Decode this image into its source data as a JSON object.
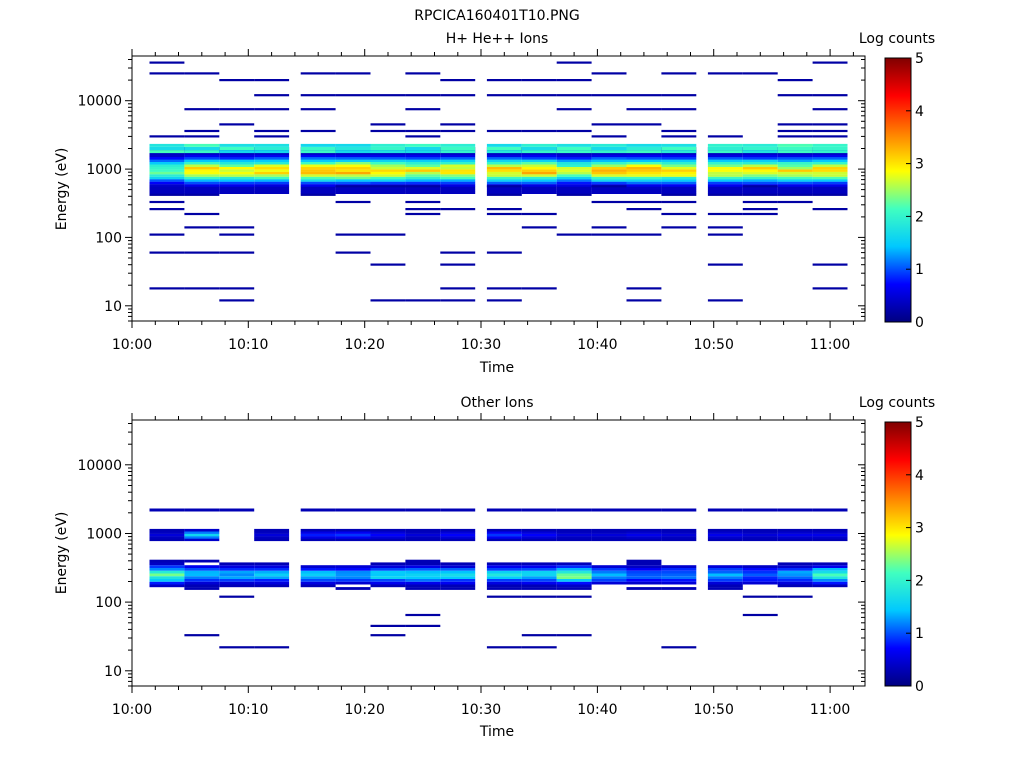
{
  "figure_title": "RPCICA160401T10.PNG",
  "chart_data": [
    {
      "type": "heatmap",
      "title": "H+ He++ Ions",
      "xlabel": "Time",
      "ylabel": "Energy (eV)",
      "x_range": [
        "10:00",
        "11:03"
      ],
      "x_ticks": [
        "10:00",
        "10:10",
        "10:20",
        "10:30",
        "10:40",
        "10:50",
        "11:00"
      ],
      "y_scale": "log",
      "y_range": [
        6,
        45000
      ],
      "y_ticks": [
        "10",
        "100",
        "1000",
        "10000"
      ],
      "grid": false,
      "colorbar": {
        "label": "Log counts",
        "range": [
          0,
          5
        ],
        "ticks": [
          "0",
          "1",
          "2",
          "3",
          "4",
          "5"
        ],
        "colormap": [
          "#000080",
          "#0000ff",
          "#00c8ff",
          "#40ffc0",
          "#ffff00",
          "#ff8000",
          "#ff0000",
          "#800000"
        ]
      },
      "time_bins": [
        "10:03",
        "10:06",
        "10:09",
        "10:12",
        "10:16",
        "10:19",
        "10:22",
        "10:25",
        "10:28",
        "10:32",
        "10:35",
        "10:38",
        "10:41",
        "10:44",
        "10:47",
        "10:51",
        "10:54",
        "10:57",
        "11:00"
      ],
      "core_energy_eV": 950,
      "core_peak_log_counts": [
        2.2,
        3.0,
        2.9,
        3.0,
        3.2,
        3.3,
        3.1,
        2.9,
        3.0,
        3.1,
        3.2,
        2.6,
        3.1,
        3.2,
        3.1,
        3.0,
        3.0,
        2.9,
        3.0
      ],
      "band_2000eV_log_counts": 1.9,
      "sparse_levels_eV": [
        12,
        18,
        40,
        60,
        110,
        140,
        220,
        260,
        330,
        420,
        560,
        3000,
        3600,
        4500,
        7500,
        12000,
        20000,
        25000,
        36000
      ],
      "sparse_log_counts": 0.2
    },
    {
      "type": "heatmap",
      "title": "Other Ions",
      "xlabel": "Time",
      "ylabel": "Energy (eV)",
      "x_range": [
        "10:00",
        "11:03"
      ],
      "x_ticks": [
        "10:00",
        "10:10",
        "10:20",
        "10:30",
        "10:40",
        "10:50",
        "11:00"
      ],
      "y_scale": "log",
      "y_range": [
        6,
        45000
      ],
      "y_ticks": [
        "10",
        "100",
        "1000",
        "10000"
      ],
      "grid": false,
      "colorbar": {
        "label": "Log counts",
        "range": [
          0,
          5
        ],
        "ticks": [
          "0",
          "1",
          "2",
          "3",
          "4",
          "5"
        ],
        "colormap": [
          "#000080",
          "#0000ff",
          "#00c8ff",
          "#40ffc0",
          "#ffff00",
          "#ff8000",
          "#ff0000",
          "#800000"
        ]
      },
      "time_bins": [
        "10:03",
        "10:06",
        "10:09",
        "10:12",
        "10:16",
        "10:19",
        "10:22",
        "10:25",
        "10:28",
        "10:32",
        "10:35",
        "10:38",
        "10:41",
        "10:44",
        "10:47",
        "10:51",
        "10:54",
        "10:57",
        "11:00"
      ],
      "band_250eV_log_counts": [
        2.2,
        1.5,
        1.3,
        1.5,
        1.4,
        1.3,
        1.6,
        1.7,
        1.5,
        1.6,
        1.6,
        2.3,
        1.3,
        1.2,
        1.2,
        1.3,
        1.1,
        1.3,
        1.9
      ],
      "band_950eV_log_counts": [
        0.5,
        1.6,
        0.0,
        0.5,
        0.8,
        0.9,
        0.7,
        0.5,
        0.7,
        0.9,
        0.7,
        0.5,
        0.5,
        0.6,
        0.5,
        0.6,
        0.5,
        0.6,
        0.6
      ],
      "band_2200eV_log_counts": 0.3,
      "sparse_levels_eV": [
        22,
        33,
        45,
        65,
        120
      ],
      "sparse_log_counts": 0.2
    }
  ]
}
